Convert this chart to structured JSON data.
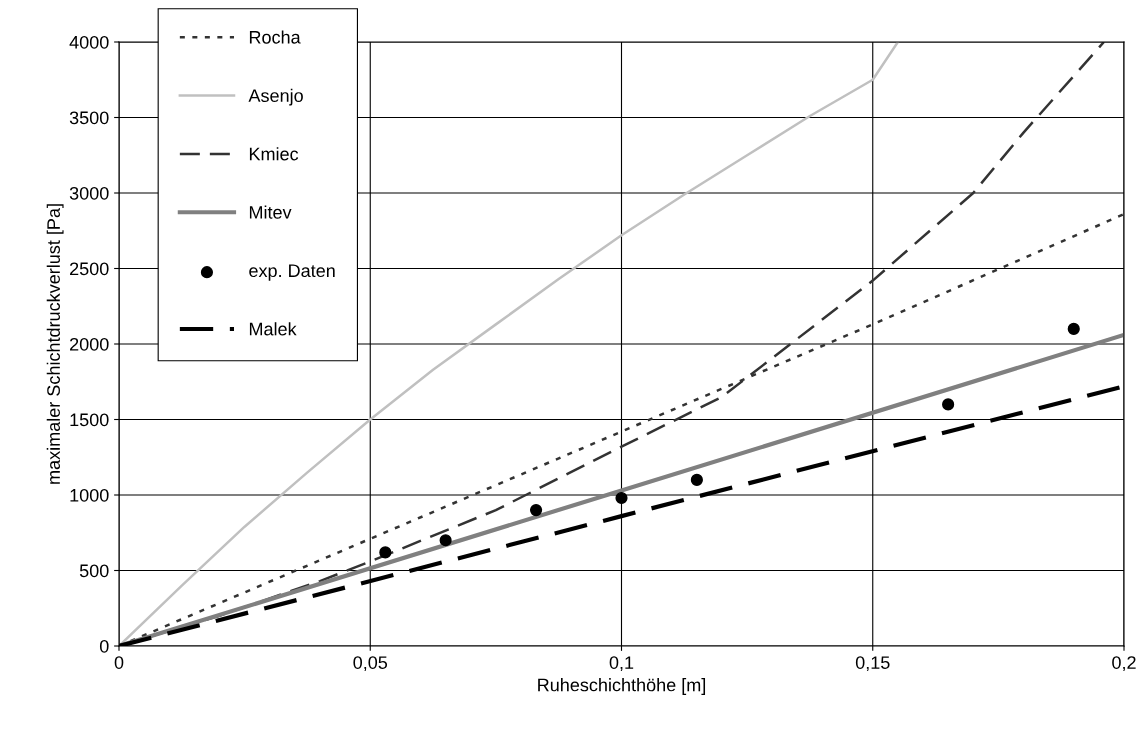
{
  "chart_data": {
    "type": "line",
    "xlabel": "Ruheschichthöhe [m]",
    "ylabel": "maximaler Schichtdruckverlust [Pa]",
    "xlim": [
      0,
      0.2
    ],
    "ylim": [
      0,
      4000
    ],
    "xticks": [
      0,
      {
        "value": 0.05,
        "label": "0,05"
      },
      {
        "value": 0.1,
        "label": "0,1"
      },
      {
        "value": 0.15,
        "label": "0,15"
      },
      {
        "value": 0.2,
        "label": "0,2"
      }
    ],
    "yticks": [
      0,
      500,
      1000,
      1500,
      2000,
      2500,
      3000,
      3500,
      4000
    ],
    "grid": true,
    "legend": "top left",
    "series": [
      {
        "name": "Rocha",
        "color": "#333333",
        "line_style": "dotted",
        "x": [
          0,
          0.05,
          0.1,
          0.15,
          0.2
        ],
        "values": [
          0,
          710,
          1420,
          2130,
          2860
        ]
      },
      {
        "name": "Asenjo",
        "color": "#c0c0c0",
        "line_style": "solid",
        "x": [
          0,
          0.0125,
          0.025,
          0.0375,
          0.05,
          0.0625,
          0.075,
          0.0875,
          0.1,
          0.1125,
          0.125,
          0.1375,
          0.15,
          0.155
        ],
        "values": [
          0,
          400,
          790,
          1150,
          1500,
          1830,
          2130,
          2430,
          2720,
          2990,
          3250,
          3510,
          3750,
          4000
        ]
      },
      {
        "name": "Kmiec",
        "color": "#333333",
        "line_style": "dashed",
        "x": [
          0,
          0.02,
          0.04,
          0.05,
          0.075,
          0.1,
          0.12,
          0.15,
          0.17,
          0.18,
          0.196
        ],
        "values": [
          0,
          200,
          430,
          560,
          900,
          1320,
          1650,
          2420,
          3000,
          3400,
          4000
        ]
      },
      {
        "name": "Mitev",
        "color": "#808080",
        "line_style": "solid",
        "x": [
          0,
          0.1,
          0.2
        ],
        "values": [
          0,
          1030,
          2060
        ]
      },
      {
        "name": "exp. Daten",
        "type": "scatter",
        "marker": "circle",
        "color": "#000000",
        "x": [
          0.053,
          0.065,
          0.083,
          0.1,
          0.115,
          0.165,
          0.19
        ],
        "values": [
          620,
          700,
          900,
          980,
          1100,
          1600,
          2100
        ]
      },
      {
        "name": "Malek",
        "color": "#000000",
        "line_style": "dashed",
        "x": [
          0,
          0.1,
          0.2
        ],
        "values": [
          0,
          860,
          1720
        ]
      }
    ]
  }
}
